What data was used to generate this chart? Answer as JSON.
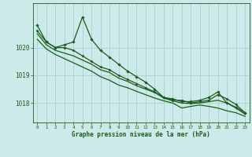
{
  "title": "Graphe pression niveau de la mer (hPa)",
  "background_color": "#cdeaea",
  "grid_color": "#b0d4d4",
  "line_color": "#1a5c1a",
  "marker_color": "#1a5c1a",
  "xlim": [
    -0.5,
    23.5
  ],
  "ylim": [
    1017.3,
    1021.6
  ],
  "yticks": [
    1018,
    1019,
    1020
  ],
  "xticks": [
    0,
    1,
    2,
    3,
    4,
    5,
    6,
    7,
    8,
    9,
    10,
    11,
    12,
    13,
    14,
    15,
    16,
    17,
    18,
    19,
    20,
    21,
    22,
    23
  ],
  "lines": [
    [
      1020.8,
      1020.2,
      1020.0,
      1020.1,
      1020.2,
      1021.1,
      1020.3,
      1019.9,
      1019.65,
      1019.4,
      1019.15,
      1018.95,
      1018.75,
      1018.5,
      1018.2,
      1018.15,
      1018.05,
      1018.05,
      1018.1,
      1018.2,
      1018.4,
      1018.0,
      1017.85,
      1017.65
    ],
    [
      1020.6,
      1020.2,
      1020.0,
      1020.0,
      1019.9,
      1019.7,
      1019.5,
      1019.3,
      1019.2,
      1019.0,
      1018.85,
      1018.7,
      1018.55,
      1018.4,
      1018.2,
      1018.1,
      1018.1,
      1018.0,
      1018.05,
      1018.1,
      1018.3,
      1018.15,
      1017.95,
      1017.65
    ],
    [
      1020.5,
      1020.1,
      1019.9,
      1019.8,
      1019.7,
      1019.55,
      1019.4,
      1019.2,
      1019.1,
      1018.9,
      1018.78,
      1018.62,
      1018.5,
      1018.38,
      1018.18,
      1018.08,
      1018.0,
      1017.98,
      1018.0,
      1018.05,
      1018.1,
      1018.0,
      1017.82,
      1017.6
    ],
    [
      1020.3,
      1019.95,
      1019.75,
      1019.6,
      1019.45,
      1019.3,
      1019.15,
      1018.95,
      1018.82,
      1018.65,
      1018.55,
      1018.42,
      1018.3,
      1018.18,
      1018.08,
      1018.0,
      1017.82,
      1017.88,
      1017.93,
      1017.88,
      1017.82,
      1017.72,
      1017.65,
      1017.52
    ]
  ]
}
